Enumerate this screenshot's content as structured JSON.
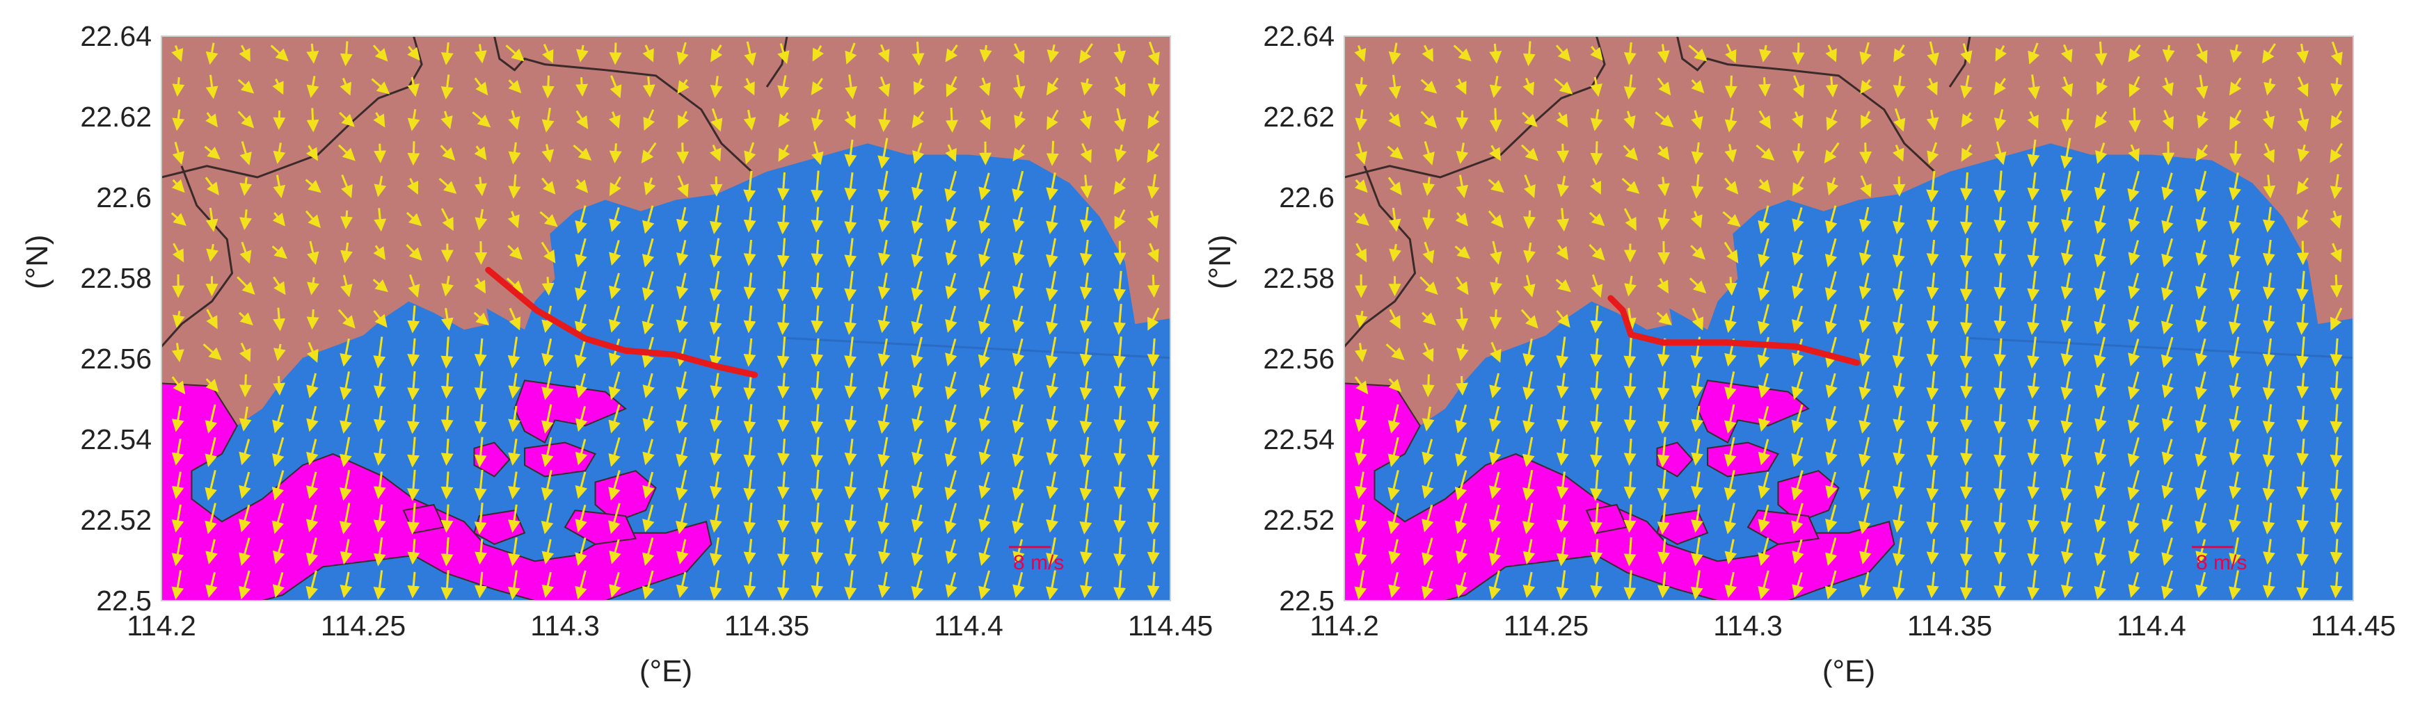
{
  "colors": {
    "land_north": "#c07b76",
    "land_south": "#ff00ee",
    "water": "#2e7bdb",
    "arrow": "#f2e21c",
    "track": "#e61a1a",
    "boundary": "#3b2a2a",
    "scale_bar": "#e8004a"
  },
  "axes": {
    "x_ticks": [
      "114.2",
      "114.25",
      "114.3",
      "114.35",
      "114.4",
      "114.45"
    ],
    "y_ticks": [
      "22.64",
      "22.62",
      "22.6",
      "22.58",
      "22.56",
      "22.54",
      "22.52",
      "22.5"
    ],
    "x_label": "(°E)",
    "y_label": "(°N)",
    "x_range": [
      114.2,
      114.45
    ],
    "y_range": [
      22.5,
      22.64
    ]
  },
  "panels": [
    {
      "scale_label": "8 m/s",
      "track_color": "track",
      "track": [
        [
          114.281,
          22.582
        ],
        [
          114.293,
          22.572
        ],
        [
          114.305,
          22.565
        ],
        [
          114.315,
          22.562
        ],
        [
          114.327,
          22.561
        ],
        [
          114.338,
          22.558
        ],
        [
          114.347,
          22.556
        ]
      ]
    },
    {
      "scale_label": "8 m/s",
      "track_color": "track",
      "track": [
        [
          114.266,
          22.575
        ],
        [
          114.269,
          22.572
        ],
        [
          114.271,
          22.566
        ],
        [
          114.279,
          22.564
        ],
        [
          114.295,
          22.564
        ],
        [
          114.312,
          22.563
        ],
        [
          114.327,
          22.559
        ]
      ]
    }
  ]
}
